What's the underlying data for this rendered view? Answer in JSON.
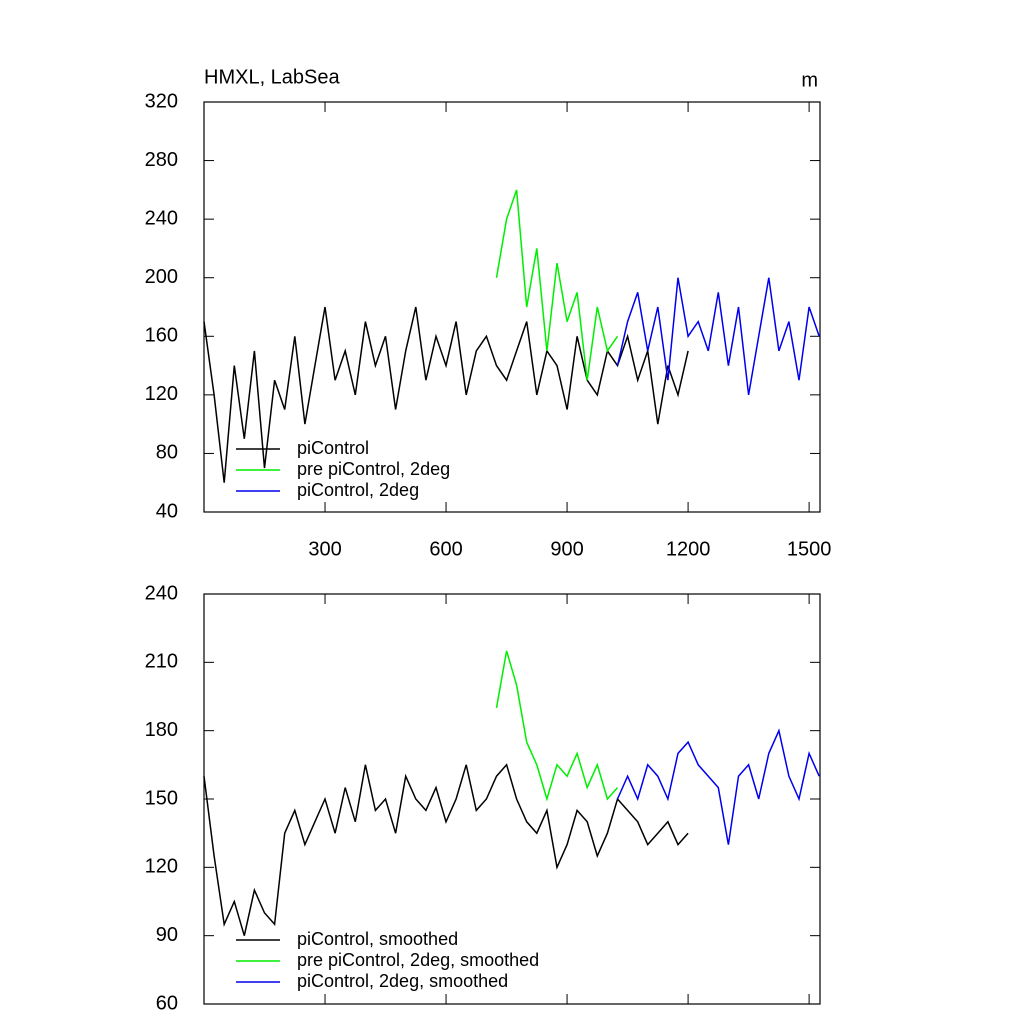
{
  "chart_data": [
    {
      "type": "line",
      "title": "HMXL, LabSea",
      "units": "m",
      "x": [
        0,
        25,
        50,
        75,
        100,
        125,
        150,
        175,
        200,
        225,
        250,
        275,
        300,
        325,
        350,
        375,
        400,
        425,
        450,
        475,
        500,
        525,
        550,
        575,
        600,
        625,
        650,
        675,
        700,
        725,
        750,
        775,
        800,
        825,
        850,
        875,
        900,
        925,
        950,
        975,
        1000,
        1025,
        1050,
        1075,
        1100,
        1125,
        1150,
        1175,
        1200,
        1225,
        1250,
        1275,
        1300,
        1325,
        1350,
        1375,
        1400,
        1425,
        1450,
        1475,
        1500,
        1525
      ],
      "xlim": [
        0,
        1527
      ],
      "xticks": [
        300,
        600,
        900,
        1200,
        1500
      ],
      "ylim": [
        40,
        320
      ],
      "yticks": [
        40,
        80,
        120,
        160,
        200,
        240,
        280,
        320
      ],
      "series": [
        {
          "name": "piControl",
          "color": "#000000",
          "values": [
            170,
            120,
            60,
            140,
            90,
            150,
            70,
            130,
            110,
            160,
            100,
            140,
            180,
            130,
            150,
            120,
            170,
            140,
            160,
            110,
            150,
            180,
            130,
            160,
            140,
            170,
            120,
            150,
            160,
            140,
            130,
            150,
            170,
            120,
            150,
            140,
            110,
            160,
            130,
            120,
            150,
            140,
            160,
            130,
            150,
            100,
            140,
            120,
            150,
            null,
            null,
            null,
            null,
            null,
            null,
            null,
            null,
            null,
            null,
            null,
            null,
            null
          ]
        },
        {
          "name": "pre piControl, 2deg",
          "color": "#00ee00",
          "values": [
            null,
            null,
            null,
            null,
            null,
            null,
            null,
            null,
            null,
            null,
            null,
            null,
            null,
            null,
            null,
            null,
            null,
            null,
            null,
            null,
            null,
            null,
            null,
            null,
            null,
            null,
            null,
            null,
            null,
            200,
            240,
            260,
            180,
            220,
            150,
            210,
            170,
            190,
            130,
            180,
            150,
            160,
            null,
            null,
            null,
            null,
            null,
            null,
            null,
            null,
            null,
            null,
            null,
            null,
            null,
            null,
            null,
            null,
            null,
            null,
            null,
            null
          ]
        },
        {
          "name": "piControl, 2deg",
          "color": "#0000ee",
          "values": [
            null,
            null,
            null,
            null,
            null,
            null,
            null,
            null,
            null,
            null,
            null,
            null,
            null,
            null,
            null,
            null,
            null,
            null,
            null,
            null,
            null,
            null,
            null,
            null,
            null,
            null,
            null,
            null,
            null,
            null,
            null,
            null,
            null,
            null,
            null,
            null,
            null,
            null,
            null,
            null,
            null,
            140,
            170,
            190,
            150,
            180,
            130,
            200,
            160,
            170,
            150,
            190,
            140,
            180,
            120,
            160,
            200,
            150,
            170,
            130,
            180,
            160
          ]
        }
      ]
    },
    {
      "type": "line",
      "x": [
        0,
        25,
        50,
        75,
        100,
        125,
        150,
        175,
        200,
        225,
        250,
        275,
        300,
        325,
        350,
        375,
        400,
        425,
        450,
        475,
        500,
        525,
        550,
        575,
        600,
        625,
        650,
        675,
        700,
        725,
        750,
        775,
        800,
        825,
        850,
        875,
        900,
        925,
        950,
        975,
        1000,
        1025,
        1050,
        1075,
        1100,
        1125,
        1150,
        1175,
        1200,
        1225,
        1250,
        1275,
        1300,
        1325,
        1350,
        1375,
        1400,
        1425,
        1450,
        1475,
        1500,
        1525
      ],
      "xlim": [
        0,
        1527
      ],
      "ylim": [
        60,
        240
      ],
      "yticks": [
        60,
        90,
        120,
        150,
        180,
        210,
        240
      ],
      "series": [
        {
          "name": "piControl, smoothed",
          "color": "#000000",
          "values": [
            160,
            125,
            95,
            105,
            90,
            110,
            100,
            95,
            135,
            145,
            130,
            140,
            150,
            135,
            155,
            140,
            165,
            145,
            150,
            135,
            160,
            150,
            145,
            155,
            140,
            150,
            165,
            145,
            150,
            160,
            165,
            150,
            140,
            135,
            145,
            120,
            130,
            145,
            140,
            125,
            135,
            150,
            145,
            140,
            130,
            135,
            140,
            130,
            135,
            null,
            null,
            null,
            null,
            null,
            null,
            null,
            null,
            null,
            null,
            null,
            null,
            null
          ]
        },
        {
          "name": "pre piControl, 2deg, smoothed",
          "color": "#00ee00",
          "values": [
            null,
            null,
            null,
            null,
            null,
            null,
            null,
            null,
            null,
            null,
            null,
            null,
            null,
            null,
            null,
            null,
            null,
            null,
            null,
            null,
            null,
            null,
            null,
            null,
            null,
            null,
            null,
            null,
            null,
            190,
            215,
            200,
            175,
            165,
            150,
            165,
            160,
            170,
            155,
            165,
            150,
            155,
            null,
            null,
            null,
            null,
            null,
            null,
            null,
            null,
            null,
            null,
            null,
            null,
            null,
            null,
            null,
            null,
            null,
            null,
            null,
            null
          ]
        },
        {
          "name": "piControl, 2deg, smoothed",
          "color": "#0000ee",
          "values": [
            null,
            null,
            null,
            null,
            null,
            null,
            null,
            null,
            null,
            null,
            null,
            null,
            null,
            null,
            null,
            null,
            null,
            null,
            null,
            null,
            null,
            null,
            null,
            null,
            null,
            null,
            null,
            null,
            null,
            null,
            null,
            null,
            null,
            null,
            null,
            null,
            null,
            null,
            null,
            null,
            null,
            150,
            160,
            150,
            165,
            160,
            150,
            170,
            175,
            165,
            160,
            155,
            130,
            160,
            165,
            150,
            170,
            180,
            160,
            150,
            170,
            160
          ]
        }
      ]
    }
  ]
}
